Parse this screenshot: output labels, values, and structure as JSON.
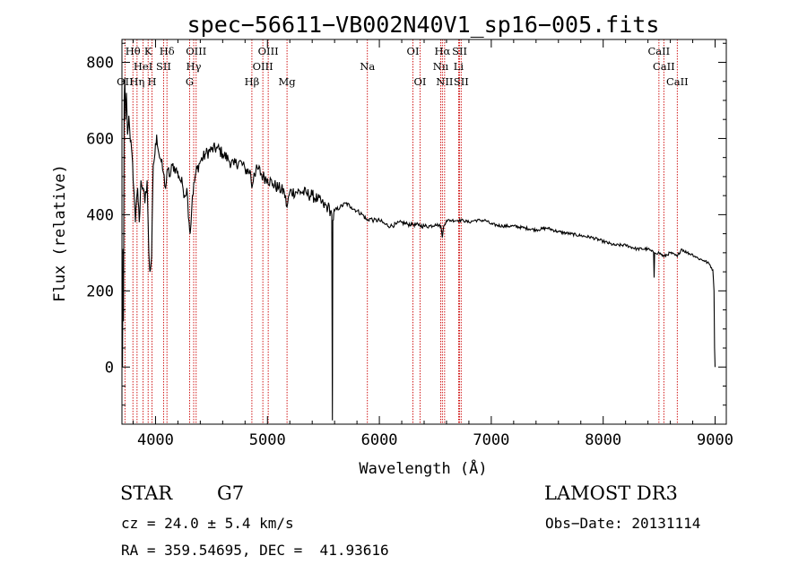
{
  "chart_data": {
    "type": "line",
    "title": "spec−56611−VB002N40V1_sp16−005.fits",
    "xlabel": "Wavelength (Å)",
    "ylabel": "Flux (relative)",
    "xlim": [
      3700,
      9100
    ],
    "ylim": [
      -150,
      860
    ],
    "x_ticks": [
      4000,
      5000,
      6000,
      7000,
      8000,
      9000
    ],
    "x_tick_labels": [
      "4000",
      "5000",
      "6000",
      "7000",
      "8000",
      "9000"
    ],
    "y_ticks": [
      0,
      200,
      400,
      600,
      800
    ],
    "y_tick_labels": [
      "0",
      "200",
      "400",
      "600",
      "800"
    ],
    "series": [
      {
        "name": "flux",
        "color": "#000000",
        "anchors": [
          [
            3705,
            0
          ],
          [
            3710,
            310
          ],
          [
            3714,
            120
          ],
          [
            3720,
            700
          ],
          [
            3726,
            760
          ],
          [
            3732,
            650
          ],
          [
            3740,
            720
          ],
          [
            3750,
            610
          ],
          [
            3762,
            660
          ],
          [
            3775,
            590
          ],
          [
            3790,
            560
          ],
          [
            3805,
            470
          ],
          [
            3820,
            380
          ],
          [
            3840,
            470
          ],
          [
            3855,
            380
          ],
          [
            3870,
            490
          ],
          [
            3890,
            470
          ],
          [
            3905,
            430
          ],
          [
            3925,
            490
          ],
          [
            3940,
            300
          ],
          [
            3950,
            250
          ],
          [
            3965,
            290
          ],
          [
            3980,
            530
          ],
          [
            3995,
            560
          ],
          [
            4010,
            610
          ],
          [
            4030,
            560
          ],
          [
            4050,
            540
          ],
          [
            4070,
            510
          ],
          [
            4090,
            470
          ],
          [
            4110,
            520
          ],
          [
            4130,
            500
          ],
          [
            4150,
            530
          ],
          [
            4180,
            520
          ],
          [
            4210,
            500
          ],
          [
            4240,
            480
          ],
          [
            4260,
            450
          ],
          [
            4280,
            470
          ],
          [
            4300,
            380
          ],
          [
            4310,
            350
          ],
          [
            4330,
            450
          ],
          [
            4360,
            510
          ],
          [
            4400,
            540
          ],
          [
            4450,
            560
          ],
          [
            4500,
            570
          ],
          [
            4550,
            575
          ],
          [
            4600,
            560
          ],
          [
            4650,
            545
          ],
          [
            4700,
            530
          ],
          [
            4750,
            540
          ],
          [
            4800,
            520
          ],
          [
            4850,
            510
          ],
          [
            4861,
            470
          ],
          [
            4880,
            510
          ],
          [
            4920,
            520
          ],
          [
            4960,
            500
          ],
          [
            5000,
            495
          ],
          [
            5050,
            480
          ],
          [
            5100,
            470
          ],
          [
            5150,
            460
          ],
          [
            5175,
            420
          ],
          [
            5200,
            460
          ],
          [
            5250,
            460
          ],
          [
            5300,
            460
          ],
          [
            5350,
            455
          ],
          [
            5400,
            450
          ],
          [
            5450,
            440
          ],
          [
            5500,
            425
          ],
          [
            5540,
            420
          ],
          [
            5565,
            410
          ],
          [
            5575,
            400
          ],
          [
            5580,
            -140
          ],
          [
            5584,
            385
          ],
          [
            5600,
            410
          ],
          [
            5650,
            420
          ],
          [
            5700,
            430
          ],
          [
            5750,
            420
          ],
          [
            5800,
            410
          ],
          [
            5850,
            400
          ],
          [
            5890,
            385
          ],
          [
            5920,
            390
          ],
          [
            5950,
            385
          ],
          [
            6000,
            385
          ],
          [
            6050,
            375
          ],
          [
            6100,
            370
          ],
          [
            6150,
            375
          ],
          [
            6200,
            380
          ],
          [
            6250,
            375
          ],
          [
            6300,
            375
          ],
          [
            6350,
            372
          ],
          [
            6400,
            370
          ],
          [
            6450,
            370
          ],
          [
            6500,
            375
          ],
          [
            6550,
            370
          ],
          [
            6563,
            340
          ],
          [
            6575,
            370
          ],
          [
            6600,
            385
          ],
          [
            6650,
            385
          ],
          [
            6700,
            385
          ],
          [
            6750,
            385
          ],
          [
            6800,
            380
          ],
          [
            6850,
            385
          ],
          [
            6900,
            385
          ],
          [
            6950,
            385
          ],
          [
            7000,
            375
          ],
          [
            7100,
            370
          ],
          [
            7200,
            370
          ],
          [
            7300,
            365
          ],
          [
            7400,
            360
          ],
          [
            7500,
            365
          ],
          [
            7600,
            355
          ],
          [
            7700,
            350
          ],
          [
            7800,
            345
          ],
          [
            7900,
            340
          ],
          [
            8000,
            330
          ],
          [
            8100,
            320
          ],
          [
            8200,
            320
          ],
          [
            8300,
            310
          ],
          [
            8400,
            310
          ],
          [
            8450,
            300
          ],
          [
            8455,
            235
          ],
          [
            8460,
            300
          ],
          [
            8500,
            300
          ],
          [
            8542,
            290
          ],
          [
            8600,
            300
          ],
          [
            8662,
            290
          ],
          [
            8700,
            310
          ],
          [
            8750,
            300
          ],
          [
            8800,
            295
          ],
          [
            8850,
            285
          ],
          [
            8900,
            280
          ],
          [
            8950,
            270
          ],
          [
            8980,
            255
          ],
          [
            8990,
            200
          ],
          [
            8995,
            50
          ],
          [
            9000,
            0
          ]
        ]
      }
    ],
    "spectral_lines": [
      {
        "label": "Hθ",
        "wavelength": 3798,
        "row": 1
      },
      {
        "label": "OII",
        "wavelength": 3727,
        "row": 3
      },
      {
        "label": "Hη",
        "wavelength": 3835,
        "row": 3
      },
      {
        "label": "HeI",
        "wavelength": 3889,
        "row": 2
      },
      {
        "label": "K",
        "wavelength": 3934,
        "row": 1
      },
      {
        "label": "H",
        "wavelength": 3969,
        "row": 3
      },
      {
        "label": "SII",
        "wavelength": 4072,
        "row": 2
      },
      {
        "label": "Hδ",
        "wavelength": 4102,
        "row": 1
      },
      {
        "label": "G",
        "wavelength": 4305,
        "row": 3
      },
      {
        "label": "Hγ",
        "wavelength": 4341,
        "row": 2
      },
      {
        "label": "OIII",
        "wavelength": 4363,
        "row": 1
      },
      {
        "label": "Hβ",
        "wavelength": 4861,
        "row": 3
      },
      {
        "label": "OIII",
        "wavelength": 4959,
        "row": 2
      },
      {
        "label": "OIII",
        "wavelength": 5007,
        "row": 1
      },
      {
        "label": "Mg",
        "wavelength": 5175,
        "row": 3
      },
      {
        "label": "Na",
        "wavelength": 5893,
        "row": 2
      },
      {
        "label": "OI",
        "wavelength": 6300,
        "row": 1
      },
      {
        "label": "OI",
        "wavelength": 6364,
        "row": 3
      },
      {
        "label": "Nıı",
        "wavelength": 6548,
        "row": 2
      },
      {
        "label": "Hα",
        "wavelength": 6563,
        "row": 1
      },
      {
        "label": "NII",
        "wavelength": 6583,
        "row": 3
      },
      {
        "label": "Li",
        "wavelength": 6708,
        "row": 2
      },
      {
        "label": "SII",
        "wavelength": 6717,
        "row": 1
      },
      {
        "label": "SII",
        "wavelength": 6731,
        "row": 3
      },
      {
        "label": "CaII",
        "wavelength": 8498,
        "row": 1
      },
      {
        "label": "CaII",
        "wavelength": 8542,
        "row": 2
      },
      {
        "label": "CaII",
        "wavelength": 8662,
        "row": 3
      }
    ],
    "line_marker_color": "#cc0000"
  },
  "info": {
    "object_class": "STAR",
    "subclass": "G7",
    "survey": "LAMOST DR3",
    "redshift": "cz = 24.0 ± 5.4 km/s",
    "obs_date": "Obs−Date: 20131114",
    "coords": "RA = 359.54695, DEC =  41.93616"
  }
}
